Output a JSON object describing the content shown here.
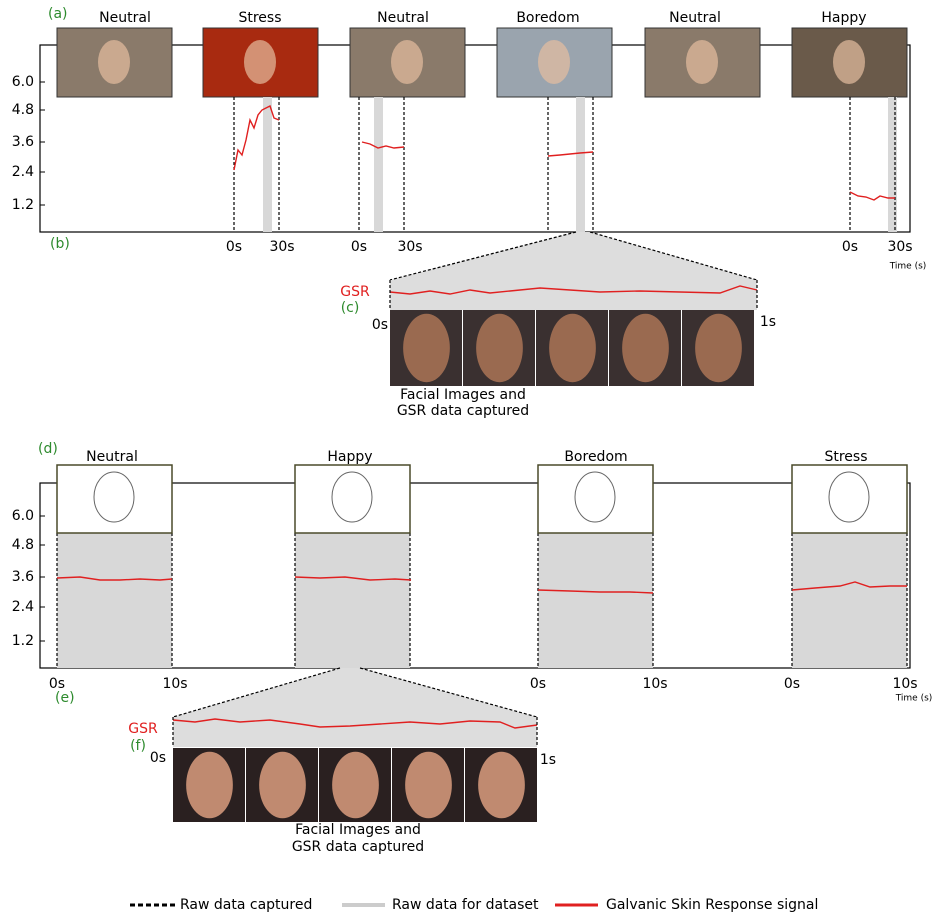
{
  "panel_a": {
    "label": "(a)",
    "emotions": [
      "Neutral",
      "Stress",
      "Neutral",
      "Boredom",
      "Neutral",
      "Happy"
    ],
    "y_ticks": [
      "6.0",
      "4.8",
      "3.6",
      "2.4",
      "1.2"
    ],
    "time_labels": [
      "0s",
      "30s",
      "0s",
      "30s",
      "0s",
      "30s"
    ],
    "time_axis": "Time (s)",
    "sub_label": "(b)"
  },
  "zoom_c": {
    "signal": "GSR",
    "label": "(c)",
    "start": "0s",
    "end": "1s",
    "caption": [
      "Facial Images and",
      "GSR data captured"
    ]
  },
  "panel_d": {
    "label": "(d)",
    "emotions": [
      "Neutral",
      "Happy",
      "Boredom",
      "Stress"
    ],
    "y_ticks": [
      "6.0",
      "4.8",
      "3.6",
      "2.4",
      "1.2"
    ],
    "time_labels": [
      "0s",
      "10s",
      "0s",
      "10s",
      "0s",
      "10s"
    ],
    "time_axis": "Time (s)",
    "sub_label": "(e)"
  },
  "zoom_f": {
    "signal": "GSR",
    "label": "(f)",
    "start": "0s",
    "end": "1s",
    "caption": [
      "Facial Images and",
      "GSR data captured"
    ]
  },
  "legend": [
    "Raw data captured",
    "Raw data for dataset",
    "Galvanic Skin Response signal"
  ]
}
